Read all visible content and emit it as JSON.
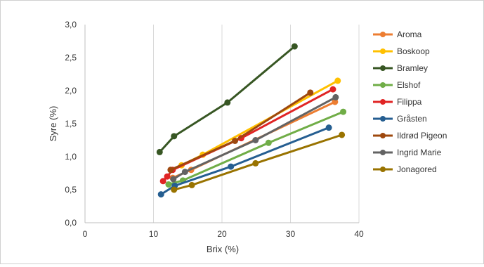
{
  "chart_data": {
    "type": "line",
    "title": "",
    "xlabel": "Brix (%)",
    "ylabel": "Syre (%)",
    "xlim": [
      0,
      40
    ],
    "ylim": [
      0,
      3
    ],
    "x_ticks": [
      "0",
      "10",
      "20",
      "30",
      "40"
    ],
    "y_ticks": [
      "0,0",
      "0,5",
      "1,0",
      "1,5",
      "2,0",
      "2,5",
      "3,0"
    ],
    "grid": "vertical",
    "legend_position": "right",
    "series": [
      {
        "name": "Aroma",
        "color": "#ED7D31",
        "points": [
          [
            12.8,
            0.68
          ],
          [
            15.5,
            0.8
          ],
          [
            36.5,
            1.83
          ]
        ]
      },
      {
        "name": "Boskoop",
        "color": "#FFC000",
        "points": [
          [
            14.1,
            0.87
          ],
          [
            17.2,
            1.03
          ],
          [
            36.9,
            2.15
          ]
        ]
      },
      {
        "name": "Bramley",
        "color": "#375623",
        "points": [
          [
            10.9,
            1.07
          ],
          [
            13.0,
            1.31
          ],
          [
            20.8,
            1.82
          ],
          [
            30.6,
            2.67
          ]
        ]
      },
      {
        "name": "Elshof",
        "color": "#70AD47",
        "points": [
          [
            12.2,
            0.58
          ],
          [
            14.3,
            0.64
          ],
          [
            26.8,
            1.21
          ],
          [
            37.7,
            1.68
          ]
        ]
      },
      {
        "name": "Filippa",
        "color": "#E02424",
        "points": [
          [
            11.4,
            0.63
          ],
          [
            12.0,
            0.7
          ],
          [
            12.8,
            0.8
          ],
          [
            22.8,
            1.28
          ],
          [
            36.2,
            2.02
          ]
        ]
      },
      {
        "name": "Gråsten",
        "color": "#255E91",
        "points": [
          [
            11.1,
            0.43
          ],
          [
            13.1,
            0.56
          ],
          [
            21.3,
            0.85
          ],
          [
            35.6,
            1.44
          ]
        ]
      },
      {
        "name": "Ildrød Pigeon",
        "color": "#9E480E",
        "points": [
          [
            12.5,
            0.8
          ],
          [
            21.9,
            1.24
          ],
          [
            32.9,
            1.97
          ]
        ]
      },
      {
        "name": "Ingrid Marie",
        "color": "#636363",
        "points": [
          [
            12.9,
            0.66
          ],
          [
            14.6,
            0.77
          ],
          [
            24.9,
            1.25
          ],
          [
            36.6,
            1.9
          ]
        ]
      },
      {
        "name": "Jonagored",
        "color": "#997300",
        "points": [
          [
            13.0,
            0.5
          ],
          [
            15.6,
            0.57
          ],
          [
            24.9,
            0.9
          ],
          [
            37.5,
            1.33
          ]
        ]
      }
    ]
  }
}
